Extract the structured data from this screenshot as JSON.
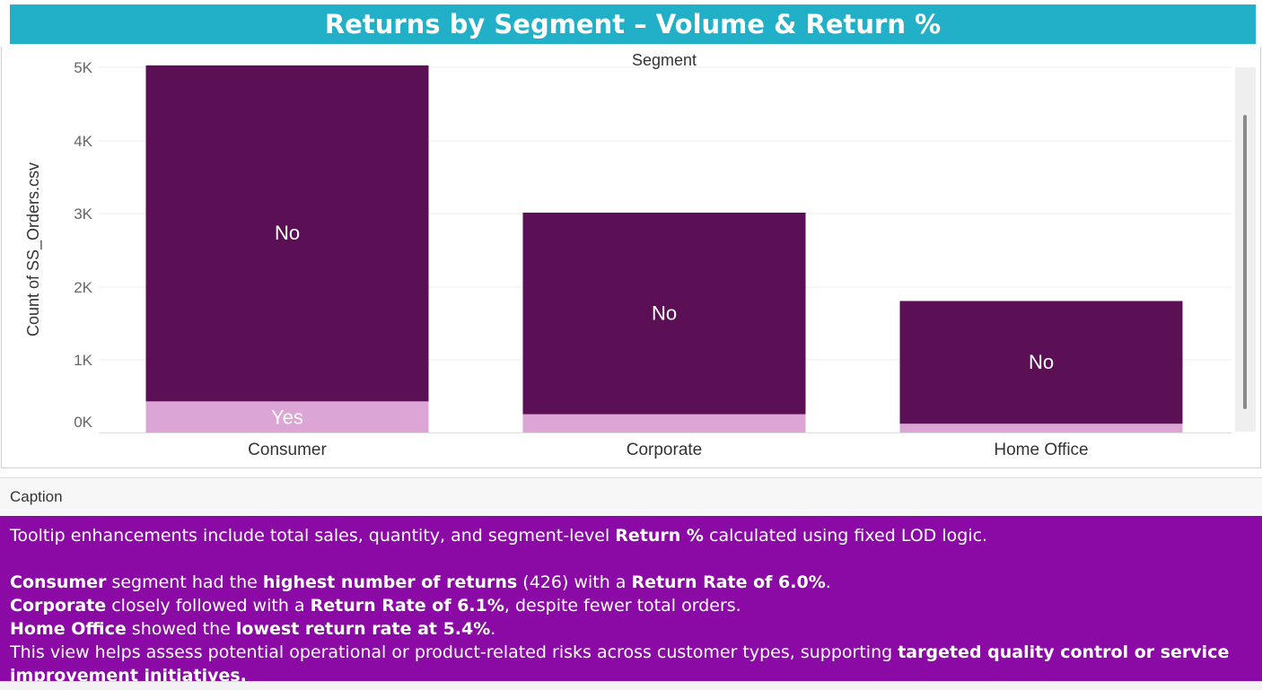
{
  "title": "Returns by Segment – Volume & Return %",
  "caption": {
    "header": "Caption",
    "intro": {
      "a": "Tooltip enhancements include total sales, quantity, and segment-level ",
      "b": "Return %",
      "c": " calculated using fixed LOD logic."
    },
    "consumer": {
      "a": "Consumer",
      "b": " segment had the ",
      "c": "highest number of returns",
      "d": " (426) with a ",
      "e": "Return Rate of 6.0%",
      "f": "."
    },
    "corporate": {
      "a": "Corporate",
      "b": " closely followed with a ",
      "c": "Return Rate of 6.1%",
      "d": ", despite fewer total orders."
    },
    "home_office": {
      "a": "Home Office",
      "b": " showed the ",
      "c": "lowest return rate at 5.4%",
      "d": "."
    },
    "closing": {
      "a": "This view helps assess potential operational or product-related risks across customer types, supporting ",
      "b": "targeted quality control or service",
      "c": "improvement initiatives."
    }
  },
  "chart_data": {
    "type": "bar",
    "stacked": true,
    "title": "Returns by Segment – Volume & Return %",
    "header_label": "Segment",
    "ylabel": "Count of SS_Orders.csv",
    "xlabel": "",
    "categories": [
      "Consumer",
      "Corporate",
      "Home Office"
    ],
    "yticks": [
      "0K",
      "1K",
      "2K",
      "3K",
      "4K",
      "5K"
    ],
    "ylim": [
      0,
      5000
    ],
    "grid": true,
    "series": [
      {
        "name": "Yes",
        "values": [
          426,
          250,
          120
        ],
        "color": "#dba5d6"
      },
      {
        "name": "No",
        "values": [
          4600,
          2760,
          1680
        ],
        "color": "#5b0f55"
      }
    ]
  }
}
